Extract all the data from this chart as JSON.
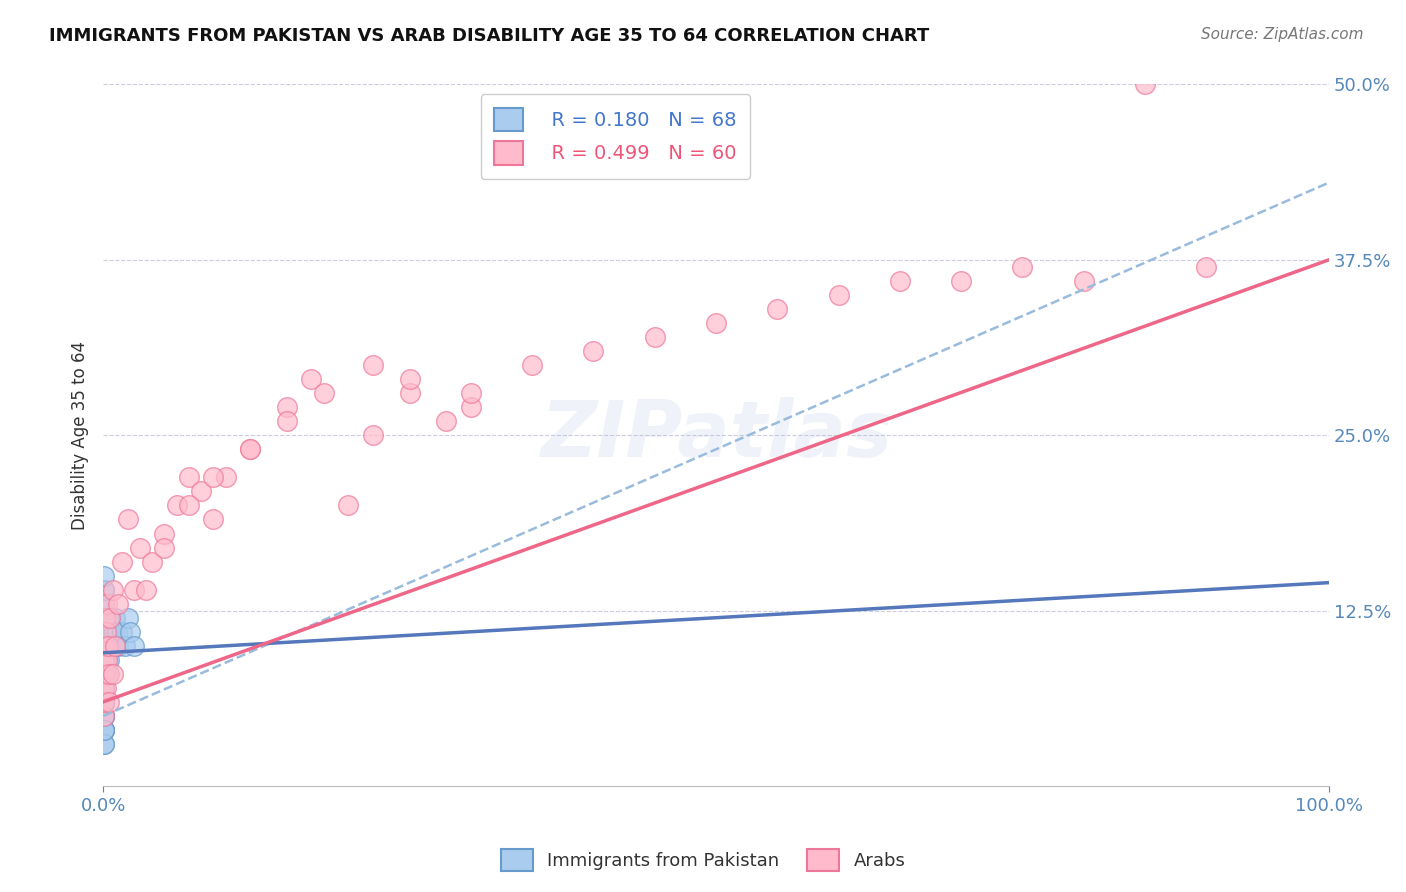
{
  "title": "IMMIGRANTS FROM PAKISTAN VS ARAB DISABILITY AGE 35 TO 64 CORRELATION CHART",
  "source": "Source: ZipAtlas.com",
  "ylabel": "Disability Age 35 to 64",
  "xlim": [
    0,
    100
  ],
  "ylim": [
    0,
    50
  ],
  "yticks": [
    0,
    12.5,
    25.0,
    37.5,
    50.0
  ],
  "ytick_labels": [
    "",
    "12.5%",
    "25.0%",
    "37.5%",
    "50.0%"
  ],
  "legend_r1": "R = 0.180",
  "legend_n1": "N = 68",
  "legend_r2": "R = 0.499",
  "legend_n2": "N = 60",
  "color_pakistan_fill": "#AACCEE",
  "color_pakistan_edge": "#6699CC",
  "color_arab_fill": "#FFBBCC",
  "color_arab_edge": "#EE7799",
  "color_pakistan_line": "#5577BB",
  "color_arab_line": "#EE6688",
  "color_dashed_line": "#99BBDD",
  "background_color": "#FFFFFF",
  "watermark": "ZIPatlas",
  "pakistan_x": [
    0.05,
    0.05,
    0.05,
    0.05,
    0.05,
    0.05,
    0.05,
    0.05,
    0.05,
    0.05,
    0.05,
    0.05,
    0.05,
    0.05,
    0.05,
    0.05,
    0.05,
    0.05,
    0.05,
    0.05,
    0.1,
    0.1,
    0.1,
    0.1,
    0.1,
    0.1,
    0.1,
    0.15,
    0.15,
    0.2,
    0.2,
    0.25,
    0.3,
    0.3,
    0.35,
    0.4,
    0.4,
    0.5,
    0.5,
    0.6,
    0.6,
    0.7,
    0.8,
    0.9,
    1.0,
    1.0,
    1.1,
    1.2,
    1.5,
    1.8,
    2.0,
    2.2,
    2.5,
    0.05,
    0.05,
    0.05,
    0.05,
    0.05,
    0.05,
    0.05,
    0.05,
    0.05,
    0.05,
    0.05,
    0.05,
    0.05,
    0.05,
    0.05
  ],
  "pakistan_y": [
    5,
    6,
    7,
    8,
    9,
    10,
    11,
    12,
    13,
    14,
    6,
    7,
    8,
    9,
    10,
    11,
    6,
    7,
    8,
    9,
    13,
    14,
    15,
    10,
    11,
    9,
    8,
    12,
    11,
    10,
    9,
    8,
    11,
    10,
    9,
    8,
    10,
    9,
    11,
    10,
    12,
    11,
    10,
    11,
    12,
    10,
    11,
    10,
    11,
    10,
    12,
    11,
    10,
    3,
    4,
    5,
    6,
    7,
    8,
    4,
    5,
    6,
    4,
    5,
    6,
    7,
    3,
    4
  ],
  "arab_x": [
    0.05,
    0.05,
    0.05,
    0.05,
    0.1,
    0.1,
    0.15,
    0.2,
    0.2,
    0.3,
    0.3,
    0.4,
    0.5,
    0.6,
    0.8,
    1.0,
    1.2,
    1.5,
    2.0,
    2.5,
    3.0,
    4.0,
    5.0,
    6.0,
    7.0,
    8.0,
    9.0,
    10.0,
    12.0,
    15.0,
    17.0,
    20.0,
    22.0,
    25.0,
    28.0,
    30.0,
    35.0,
    40.0,
    45.0,
    50.0,
    55.0,
    60.0,
    65.0,
    70.0,
    75.0,
    80.0,
    85.0,
    90.0,
    3.5,
    5.0,
    7.0,
    9.0,
    12.0,
    15.0,
    18.0,
    22.0,
    25.0,
    30.0,
    0.5,
    0.8
  ],
  "arab_y": [
    5,
    7,
    8,
    9,
    6,
    10,
    12,
    7,
    11,
    9,
    13,
    10,
    8,
    12,
    14,
    10,
    13,
    16,
    19,
    14,
    17,
    16,
    18,
    20,
    22,
    21,
    19,
    22,
    24,
    27,
    29,
    20,
    25,
    28,
    26,
    27,
    30,
    31,
    32,
    33,
    34,
    35,
    36,
    36,
    37,
    36,
    50,
    37,
    14,
    17,
    20,
    22,
    24,
    26,
    28,
    30,
    29,
    28,
    6,
    8
  ],
  "pak_line_x0": 0,
  "pak_line_y0": 9.5,
  "pak_line_x1": 100,
  "pak_line_y1": 14.5,
  "arab_line_x0": 0,
  "arab_line_y0": 6.0,
  "arab_line_x1": 100,
  "arab_line_y1": 37.5,
  "dash_line_x0": 0,
  "dash_line_y0": 5.0,
  "dash_line_x1": 100,
  "dash_line_y1": 43.0
}
